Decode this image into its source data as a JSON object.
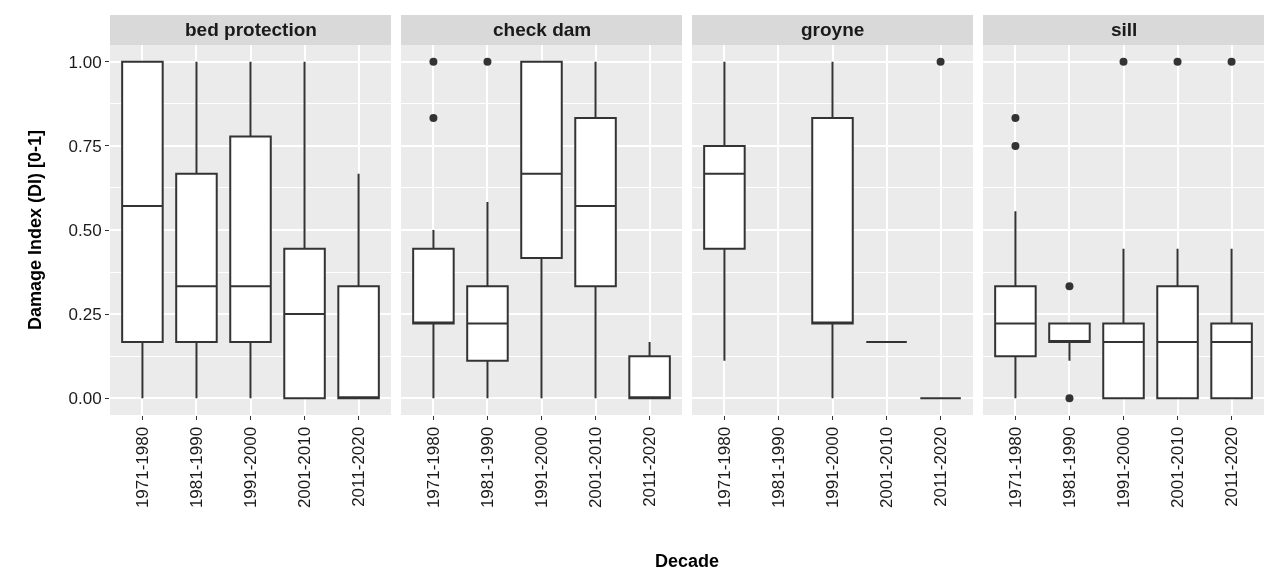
{
  "chart_data": [
    {
      "type": "box",
      "title": "bed protection",
      "ylabel": "Damage Index (DI) [0-1]",
      "grid": true,
      "categories": [
        "1971-1980",
        "1981-1990",
        "1991-2000",
        "2001-2010",
        "2011-2020"
      ],
      "ylim": [
        -0.05,
        1.05
      ],
      "yticks": [
        {
          "value": 0,
          "label": "0.00"
        },
        {
          "value": 0.25,
          "label": "0.25"
        },
        {
          "value": 0.5,
          "label": "0.50"
        },
        {
          "value": 0.75,
          "label": "0.75"
        },
        {
          "value": 1,
          "label": "1.00"
        }
      ],
      "boxes": [
        {
          "low": 0,
          "q1": 0.167,
          "median": 0.571,
          "q3": 1,
          "high": 1
        },
        {
          "low": 0,
          "q1": 0.167,
          "median": 0.333,
          "q3": 0.667,
          "high": 1
        },
        {
          "low": 0,
          "q1": 0.167,
          "median": 0.333,
          "q3": 0.778,
          "high": 1
        },
        {
          "low": 0,
          "q1": 0,
          "median": 0.25,
          "q3": 0.444,
          "high": 1
        },
        {
          "low": 0,
          "q1": 0,
          "median": 0,
          "q3": 0.333,
          "high": 0.667
        }
      ]
    },
    {
      "type": "box",
      "title": "check dam",
      "xlabel": "Decade",
      "grid": true,
      "tick_labels": "x",
      "categories": [
        "1971-1980",
        "1981-1990",
        "1991-2000",
        "2001-2010",
        "2011-2020"
      ],
      "ylim": [
        -0.05,
        1.05
      ],
      "yticks": [
        0,
        0.25,
        0.5,
        0.75,
        1
      ],
      "boxes": [
        {
          "low": 0,
          "q1": 0.222,
          "median": 0.222,
          "q3": 0.444,
          "high": 0.5,
          "outliers": [
            0.833,
            1
          ]
        },
        {
          "low": 0,
          "q1": 0.111,
          "median": 0.222,
          "q3": 0.333,
          "high": 0.583,
          "outliers": [
            1
          ]
        },
        {
          "low": 0,
          "q1": 0.417,
          "median": 0.667,
          "q3": 1,
          "high": 1
        },
        {
          "low": 0,
          "q1": 0.333,
          "median": 0.571,
          "q3": 0.833,
          "high": 1
        },
        {
          "low": 0,
          "q1": 0,
          "median": 0,
          "q3": 0.125,
          "high": 0.167
        }
      ]
    },
    {
      "type": "box",
      "title": "groyne",
      "grid": true,
      "tick_labels": "x",
      "categories": [
        "1971-1980",
        "1981-1990",
        "1991-2000",
        "2001-2010",
        "2011-2020"
      ],
      "ylim": [
        -0.05,
        1.05
      ],
      "yticks": [
        0,
        0.25,
        0.5,
        0.75,
        1
      ],
      "boxes": [
        {
          "low": 0.111,
          "q1": 0.444,
          "median": 0.667,
          "q3": 0.75,
          "high": 1
        },
        null,
        {
          "low": 0,
          "q1": 0.222,
          "median": 0.222,
          "q3": 0.833,
          "high": 1
        },
        {
          "low": 0.167,
          "q1": 0.167,
          "median": 0.167,
          "q3": 0.167,
          "high": 0.167
        },
        {
          "low": 0,
          "q1": 0,
          "median": 0,
          "q3": 0,
          "high": 0,
          "outliers": [
            1
          ]
        }
      ]
    },
    {
      "type": "box",
      "title": "sill",
      "grid": true,
      "tick_labels": "x",
      "categories": [
        "1971-1980",
        "1981-1990",
        "1991-2000",
        "2001-2010",
        "2011-2020"
      ],
      "ylim": [
        -0.05,
        1.05
      ],
      "yticks": [
        0,
        0.25,
        0.5,
        0.75,
        1
      ],
      "boxes": [
        {
          "low": 0,
          "q1": 0.125,
          "median": 0.222,
          "q3": 0.333,
          "high": 0.556,
          "outliers": [
            0.75,
            0.833
          ]
        },
        {
          "low": 0.111,
          "q1": 0.167,
          "median": 0.167,
          "q3": 0.222,
          "high": 0.222,
          "outliers": [
            0.333,
            0
          ]
        },
        {
          "low": 0,
          "q1": 0,
          "median": 0.167,
          "q3": 0.222,
          "high": 0.444,
          "outliers": [
            1
          ]
        },
        {
          "low": 0,
          "q1": 0,
          "median": 0.167,
          "q3": 0.333,
          "high": 0.444,
          "outliers": [
            1
          ]
        },
        {
          "low": 0,
          "q1": 0,
          "median": 0.167,
          "q3": 0.222,
          "high": 0.444,
          "outliers": [
            1
          ]
        }
      ]
    }
  ]
}
